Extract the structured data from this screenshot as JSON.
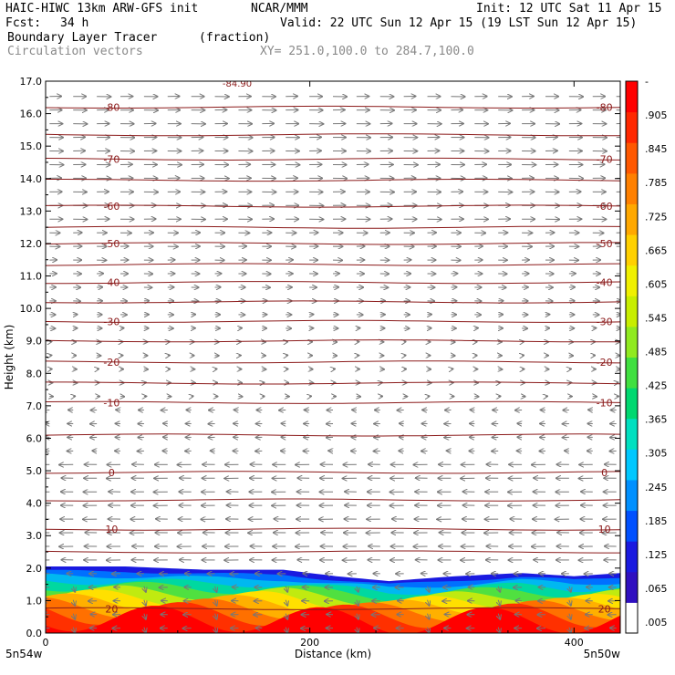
{
  "header": {
    "model": "HAIC-HIWC 13km ARW-GFS init",
    "center": "NCAR/MMM",
    "init": "Init: 12 UTC Sat 11 Apr 15",
    "fcst_label": "Fcst:",
    "fcst_value": "34 h",
    "valid": "Valid: 22 UTC Sun 12 Apr 15 (19 LST Sun 12 Apr 15)",
    "field1_name": "Boundary Layer Tracer",
    "field1_units": "(fraction)",
    "field2_name": "Circulation vectors",
    "cross_section": "XY= 251.0,100.0 to 284.7,100.0"
  },
  "colors": {
    "contour": "#8b1a1a",
    "vector": "#777777",
    "shading": [
      "#ffffff",
      "#1a1ae0",
      "#0060ff",
      "#00a8ff",
      "#00d8d0",
      "#00d890",
      "#40e040",
      "#a0ea20",
      "#e8ea00",
      "#ffc800",
      "#ff9000",
      "#ff5000",
      "#ff1000",
      "#ff0000"
    ]
  },
  "chart_data": {
    "type": "cross-section",
    "xlabel": "Distance (km)",
    "ylabel": "Height (km)",
    "xlim": [
      0,
      435
    ],
    "ylim": [
      0.0,
      17.0
    ],
    "x_ticks": [
      "0",
      "200",
      "400"
    ],
    "y_ticks": [
      "0.0",
      "1.0",
      "2.0",
      "3.0",
      "4.0",
      "5.0",
      "6.0",
      "7.0",
      "8.0",
      "9.0",
      "10.0",
      "11.0",
      "12.0",
      "13.0",
      "14.0",
      "15.0",
      "16.0",
      "17.0"
    ],
    "left_endpoint": "5n54w",
    "right_endpoint": "5n50w",
    "top_partial_label": "-84.90",
    "colorbar_labels": [
      ".005",
      ".065",
      ".125",
      ".185",
      ".245",
      ".305",
      ".365",
      ".425",
      ".485",
      ".545",
      ".605",
      ".665",
      ".725",
      ".785",
      ".845",
      ".905",
      "-"
    ],
    "temperature_contours": [
      {
        "label": "-80",
        "height_km": 16.2
      },
      {
        "label": "-70",
        "height_km": 14.6
      },
      {
        "label": "-60",
        "height_km": 13.15
      },
      {
        "label": "-50",
        "height_km": 12.0
      },
      {
        "label": "-40",
        "height_km": 10.8
      },
      {
        "label": "-30",
        "height_km": 9.6
      },
      {
        "label": "-20",
        "height_km": 8.35
      },
      {
        "label": "-10",
        "height_km": 7.1
      },
      {
        "label": "0",
        "height_km": 4.95
      },
      {
        "label": "10",
        "height_km": 3.2
      },
      {
        "label": "20",
        "height_km": 0.75
      }
    ],
    "unlabeled_contours_km": [
      15.35,
      13.95,
      12.5,
      11.35,
      10.2,
      9.0,
      7.7,
      6.1,
      4.1,
      2.5
    ],
    "tracer_top_km": [
      [
        0,
        2.05
      ],
      [
        60,
        2.05
      ],
      [
        120,
        1.95
      ],
      [
        180,
        1.95
      ],
      [
        220,
        1.75
      ],
      [
        260,
        1.6
      ],
      [
        310,
        1.75
      ],
      [
        360,
        1.85
      ],
      [
        400,
        1.75
      ],
      [
        435,
        1.85
      ]
    ],
    "grid": false,
    "legend": "colorbar-right"
  }
}
